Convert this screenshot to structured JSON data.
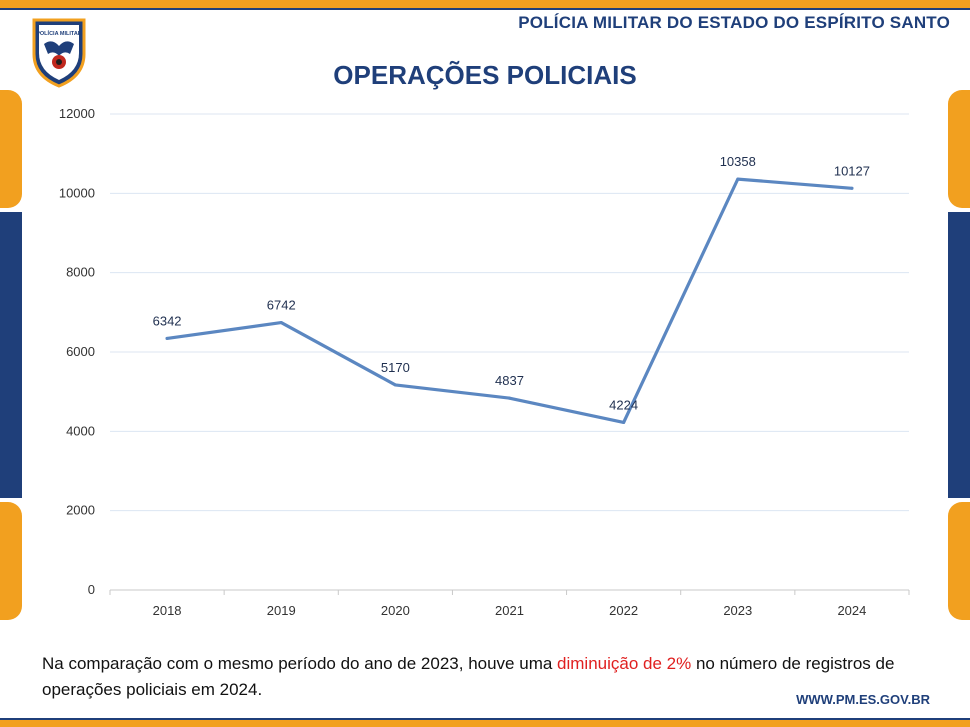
{
  "header": {
    "organization": "POLÍCIA MILITAR DO ESTADO DO ESPÍRITO SANTO",
    "crest_icon": "police-crest-icon",
    "crest_text": "POLÍCIA MILITAR"
  },
  "colors": {
    "navy": "#1f3f7a",
    "orange": "#f2a01f",
    "line": "#5b87c1",
    "highlight": "#e02020"
  },
  "chart_data": {
    "type": "line",
    "title": "OPERAÇÕES POLICIAIS",
    "categories": [
      "2018",
      "2019",
      "2020",
      "2021",
      "2022",
      "2023",
      "2024"
    ],
    "series": [
      {
        "values": [
          6342,
          6742,
          5170,
          4837,
          4224,
          10358,
          10127
        ]
      }
    ],
    "data_labels": [
      "6342",
      "6742",
      "5170",
      "4837",
      "4224",
      "10358",
      "10127"
    ],
    "ylim": [
      0,
      12000
    ],
    "yticks": [
      0,
      2000,
      4000,
      6000,
      8000,
      10000,
      12000
    ],
    "ytick_labels": [
      "0",
      "2000",
      "4000",
      "6000",
      "8000",
      "10000",
      "12000"
    ],
    "grid": true,
    "legend": "none"
  },
  "caption": {
    "before": "Na comparação com o mesmo período do ano de 2023, houve uma ",
    "highlight": "diminuição de 2%",
    "after": " no número de registros de operações policiais em 2024."
  },
  "footer": {
    "website": "WWW.PM.ES.GOV.BR"
  }
}
